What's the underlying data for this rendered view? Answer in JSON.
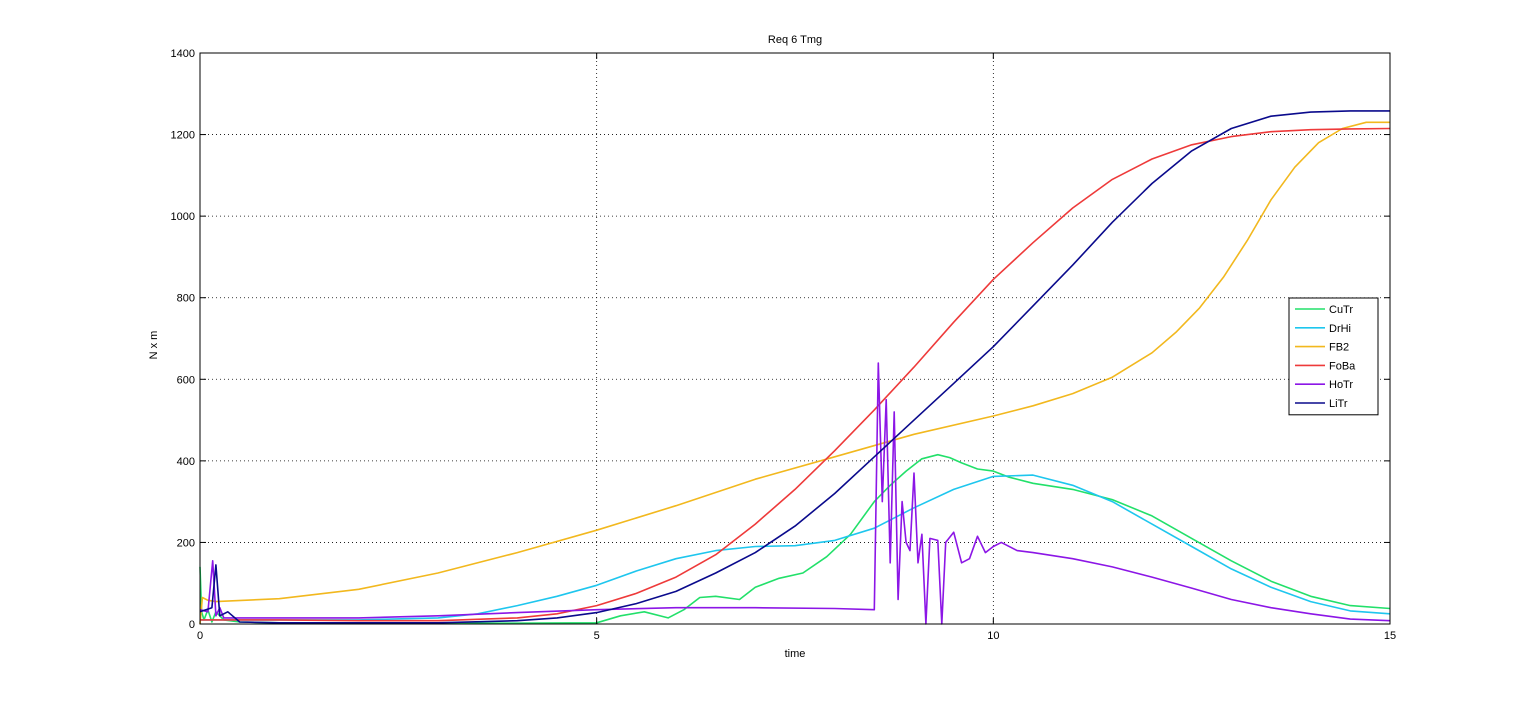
{
  "figure": {
    "background": "#ffffff"
  },
  "chart_data": {
    "type": "line",
    "title": "Req 6 Tmg",
    "xlabel": "time",
    "ylabel": "N x m",
    "xlim": [
      0,
      15
    ],
    "ylim": [
      0,
      1400
    ],
    "xticks": [
      0,
      5,
      10,
      15
    ],
    "xtick_labels": [
      "0",
      "5",
      "10",
      "15"
    ],
    "yticks": [
      0,
      200,
      400,
      600,
      800,
      1000,
      1200,
      1400
    ],
    "ytick_labels": [
      "0",
      "200",
      "400",
      "600",
      "800",
      "1000",
      "1200",
      "1400"
    ],
    "grid": true,
    "legend_position": "right",
    "series": [
      {
        "name": "CuTr",
        "color": "#22e06a",
        "x": [
          0,
          0.02,
          0.05,
          0.1,
          0.15,
          0.2,
          0.3,
          0.5,
          1,
          2,
          3,
          4,
          5,
          5.3,
          5.6,
          5.9,
          6.1,
          6.3,
          6.5,
          6.8,
          7.0,
          7.3,
          7.6,
          7.9,
          8.2,
          8.5,
          8.7,
          8.9,
          9.1,
          9.3,
          9.45,
          9.6,
          9.8,
          10.0,
          10.2,
          10.5,
          11.0,
          11.5,
          12.0,
          12.5,
          13.0,
          13.5,
          14.0,
          14.5,
          15.0
        ],
        "y": [
          140,
          30,
          10,
          35,
          5,
          30,
          10,
          5,
          3,
          3,
          2,
          2,
          3,
          20,
          30,
          15,
          35,
          65,
          68,
          60,
          90,
          112,
          125,
          165,
          220,
          300,
          340,
          375,
          405,
          415,
          408,
          395,
          380,
          375,
          360,
          345,
          330,
          305,
          265,
          210,
          155,
          105,
          68,
          45,
          38
        ]
      },
      {
        "name": "DrHi",
        "color": "#1ec6ee",
        "x": [
          0,
          0.5,
          1,
          2,
          3,
          3.5,
          4,
          4.5,
          5,
          5.5,
          6,
          6.5,
          7,
          7.5,
          8,
          8.5,
          9,
          9.5,
          10,
          10.5,
          11,
          11.5,
          12,
          12.5,
          13,
          13.5,
          14,
          14.5,
          15
        ],
        "y": [
          10,
          10,
          10,
          10,
          15,
          25,
          45,
          68,
          95,
          130,
          160,
          180,
          190,
          192,
          205,
          235,
          285,
          330,
          362,
          365,
          340,
          300,
          245,
          190,
          135,
          90,
          55,
          32,
          25
        ]
      },
      {
        "name": "FB2",
        "color": "#f2b81e",
        "x": [
          0,
          0.03,
          0.1,
          0.2,
          1,
          2,
          3,
          4,
          5,
          6,
          7,
          8,
          9,
          10,
          10.5,
          11,
          11.5,
          12,
          12.3,
          12.6,
          12.9,
          13.2,
          13.5,
          13.8,
          14.1,
          14.4,
          14.7,
          15
        ],
        "y": [
          0,
          65,
          58,
          55,
          62,
          85,
          125,
          175,
          230,
          290,
          355,
          410,
          465,
          510,
          535,
          565,
          605,
          665,
          715,
          775,
          850,
          940,
          1040,
          1120,
          1180,
          1215,
          1230,
          1230
        ]
      },
      {
        "name": "FoBa",
        "color": "#ee3a3a",
        "x": [
          0,
          1,
          2,
          3,
          4,
          4.5,
          5,
          5.5,
          6,
          6.5,
          7,
          7.5,
          8,
          8.5,
          9,
          9.5,
          10,
          10.5,
          11,
          11.5,
          12,
          12.5,
          13,
          13.5,
          14,
          14.5,
          15
        ],
        "y": [
          10,
          10,
          8,
          8,
          15,
          25,
          45,
          75,
          115,
          170,
          245,
          330,
          425,
          525,
          630,
          740,
          845,
          935,
          1020,
          1090,
          1140,
          1175,
          1195,
          1207,
          1212,
          1214,
          1215
        ]
      },
      {
        "name": "HoTr",
        "color": "#8c16e6",
        "x": [
          0,
          0.1,
          0.16,
          0.2,
          0.25,
          0.3,
          0.4,
          1,
          1.5,
          2,
          3,
          4,
          5,
          6,
          7,
          8,
          8.5,
          8.55,
          8.6,
          8.65,
          8.7,
          8.75,
          8.8,
          8.85,
          8.9,
          8.95,
          9.0,
          9.05,
          9.1,
          9.15,
          9.2,
          9.3,
          9.35,
          9.4,
          9.5,
          9.6,
          9.7,
          9.8,
          9.9,
          10.0,
          10.1,
          10.3,
          10.5,
          11,
          11.5,
          12,
          12.5,
          13,
          13.5,
          14,
          14.5,
          15
        ],
        "y": [
          35,
          30,
          155,
          20,
          40,
          15,
          15,
          15,
          15,
          15,
          20,
          28,
          35,
          40,
          40,
          38,
          35,
          640,
          300,
          550,
          150,
          520,
          60,
          300,
          200,
          180,
          370,
          150,
          220,
          0,
          210,
          205,
          0,
          200,
          225,
          150,
          160,
          215,
          175,
          190,
          200,
          180,
          175,
          160,
          140,
          115,
          88,
          60,
          40,
          25,
          12,
          8
        ]
      },
      {
        "name": "LiTr",
        "color": "#0a0a8c",
        "x": [
          0,
          0.15,
          0.2,
          0.25,
          0.35,
          0.5,
          1,
          2,
          3,
          4,
          4.5,
          5,
          5.5,
          6,
          6.5,
          7,
          7.5,
          8,
          8.5,
          9,
          9.5,
          10,
          10.5,
          11,
          11.5,
          12,
          12.5,
          13,
          13.5,
          14,
          14.5,
          15
        ],
        "y": [
          30,
          40,
          145,
          20,
          30,
          5,
          3,
          3,
          3,
          8,
          15,
          28,
          50,
          80,
          125,
          175,
          240,
          320,
          410,
          500,
          590,
          680,
          780,
          880,
          985,
          1080,
          1160,
          1215,
          1245,
          1255,
          1258,
          1258
        ]
      }
    ]
  }
}
